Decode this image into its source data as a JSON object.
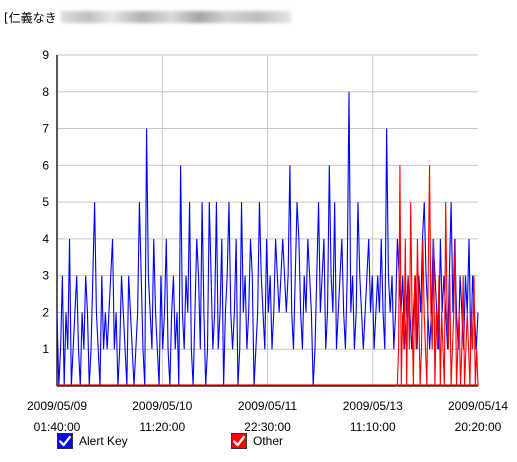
{
  "header": {
    "title_prefix": "[仁義なき",
    "title_obscured": true
  },
  "chart_data": {
    "type": "line",
    "ylim": [
      0,
      9
    ],
    "y_ticks": [
      "1",
      "2",
      "3",
      "4",
      "5",
      "6",
      "7",
      "8",
      "9"
    ],
    "x_ticks": [
      {
        "date": "2009/05/09",
        "time": "01:40:00"
      },
      {
        "date": "2009/05/10",
        "time": "11:20:00"
      },
      {
        "date": "2009/05/11",
        "time": "22:30:00"
      },
      {
        "date": "2009/05/13",
        "time": "11:10:00"
      },
      {
        "date": "2009/05/14",
        "time": "20:20:00"
      }
    ],
    "grid": true,
    "legend_position": "bottom-left",
    "series": [
      {
        "name": "Alert Key",
        "color": "#0000ff",
        "values": [
          2,
          0,
          1,
          3,
          0,
          2,
          1,
          4,
          0,
          1,
          2,
          3,
          1,
          0,
          2,
          1,
          3,
          2,
          0,
          1,
          3,
          5,
          2,
          1,
          0,
          3,
          1,
          2,
          1,
          2,
          3,
          4,
          1,
          2,
          0,
          1,
          3,
          2,
          1,
          0,
          3,
          2,
          1,
          0,
          1,
          2,
          5,
          3,
          1,
          0,
          7,
          3,
          2,
          1,
          4,
          2,
          1,
          0,
          3,
          1,
          2,
          4,
          1,
          0,
          2,
          3,
          1,
          2,
          0,
          6,
          2,
          1,
          3,
          2,
          5,
          1,
          0,
          2,
          4,
          3,
          1,
          5,
          2,
          0,
          1,
          5,
          3,
          1,
          2,
          5,
          1,
          2,
          4,
          0,
          2,
          3,
          5,
          2,
          1,
          2,
          4,
          0,
          1,
          5,
          2,
          3,
          1,
          2,
          4,
          3,
          0,
          1,
          2,
          5,
          3,
          2,
          1,
          4,
          2,
          3,
          1,
          2,
          4,
          3,
          2,
          3,
          4,
          3,
          2,
          3,
          6,
          2,
          1,
          3,
          5,
          4,
          2,
          1,
          3,
          2,
          4,
          3,
          2,
          0,
          1,
          3,
          5,
          2,
          3,
          4,
          1,
          2,
          6,
          3,
          2,
          5,
          1,
          2,
          3,
          4,
          2,
          1,
          3,
          8,
          2,
          3,
          1,
          2,
          5,
          3,
          2,
          1,
          2,
          3,
          4,
          2,
          3,
          1,
          2,
          3,
          2,
          4,
          2,
          1,
          7,
          3,
          2,
          3,
          1,
          2,
          4,
          3,
          2,
          3,
          1,
          2,
          3,
          2,
          1,
          2,
          3,
          1,
          3,
          2,
          4,
          5,
          3,
          2,
          1,
          2,
          4,
          3,
          2,
          1,
          4,
          2,
          3,
          2,
          1,
          3,
          5,
          2,
          4,
          2,
          1,
          3,
          2,
          1,
          3,
          2,
          4,
          1,
          3,
          2,
          1,
          2
        ],
        "x_range": [
          "2009/05/09 01:40:00",
          "2009/05/14 20:20:00"
        ]
      },
      {
        "name": "Other",
        "color": "#ff0000",
        "values": [
          0,
          0,
          1,
          6,
          0,
          2,
          1,
          4,
          0,
          3,
          1,
          5,
          2,
          0,
          3,
          1,
          4,
          2,
          0,
          1,
          4,
          2,
          1,
          0,
          3,
          6,
          2,
          1,
          4,
          0,
          2,
          1,
          3,
          0,
          2,
          1,
          0,
          5,
          2,
          1,
          3,
          0,
          1,
          2,
          4,
          0,
          1,
          2,
          0,
          1,
          3,
          0,
          1,
          2,
          1,
          0,
          2,
          1,
          3,
          0,
          1,
          0
        ],
        "x_range": [
          "2009/05/13 03:00:00",
          "2009/05/14 20:20:00"
        ]
      }
    ]
  },
  "legend": [
    {
      "label": "Alert Key",
      "color": "#0000ff"
    },
    {
      "label": "Other",
      "color": "#ff0000"
    }
  ]
}
